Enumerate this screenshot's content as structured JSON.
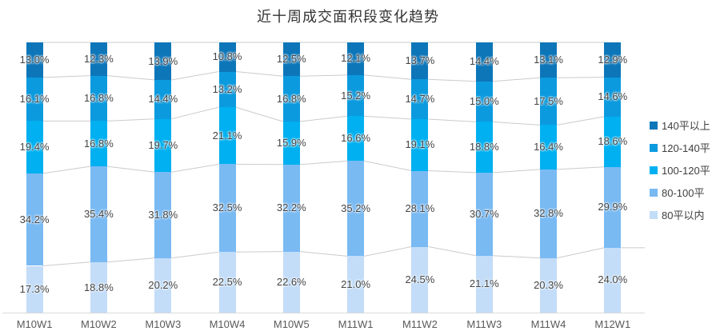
{
  "title": "近十周成交面积段变化趋势",
  "chart_data": {
    "type": "bar",
    "variant": "percent-stacked-column",
    "title": "近十周成交面积段变化趋势",
    "categories": [
      "M10W1",
      "M10W2",
      "M10W3",
      "M10W4",
      "M10W5",
      "M11W1",
      "M11W2",
      "M11W3",
      "M11W4",
      "M12W1"
    ],
    "unit": "%",
    "ylim": [
      0,
      100
    ],
    "stack_order": "top-to-bottom",
    "legend_position": "right",
    "grid": false,
    "series": [
      {
        "name": "140平以上",
        "color": "#0d76b9",
        "values": [
          13.0,
          12.3,
          13.9,
          10.8,
          12.5,
          12.1,
          13.7,
          14.4,
          13.1,
          12.9
        ]
      },
      {
        "name": "120-140平",
        "color": "#0c9ade",
        "values": [
          16.1,
          16.8,
          14.4,
          13.2,
          16.8,
          15.2,
          14.7,
          15.0,
          17.5,
          14.6
        ]
      },
      {
        "name": "100-120平",
        "color": "#00b0f0",
        "values": [
          19.4,
          16.8,
          19.7,
          21.1,
          15.9,
          16.6,
          19.1,
          18.8,
          16.4,
          18.6
        ]
      },
      {
        "name": "80-100平",
        "color": "#79baf3",
        "values": [
          34.2,
          35.4,
          31.8,
          32.5,
          32.2,
          35.2,
          28.1,
          30.7,
          32.8,
          29.9
        ]
      },
      {
        "name": "80平以内",
        "color": "#c3ddf8",
        "values": [
          17.3,
          18.8,
          20.2,
          22.5,
          22.6,
          21.0,
          24.5,
          21.1,
          20.3,
          24.0
        ]
      }
    ],
    "connector_line_color": "#cbcbcb",
    "axis_line_color": "#d9d9d9",
    "value_label_color": "#454545",
    "category_label_color": "#595959"
  }
}
